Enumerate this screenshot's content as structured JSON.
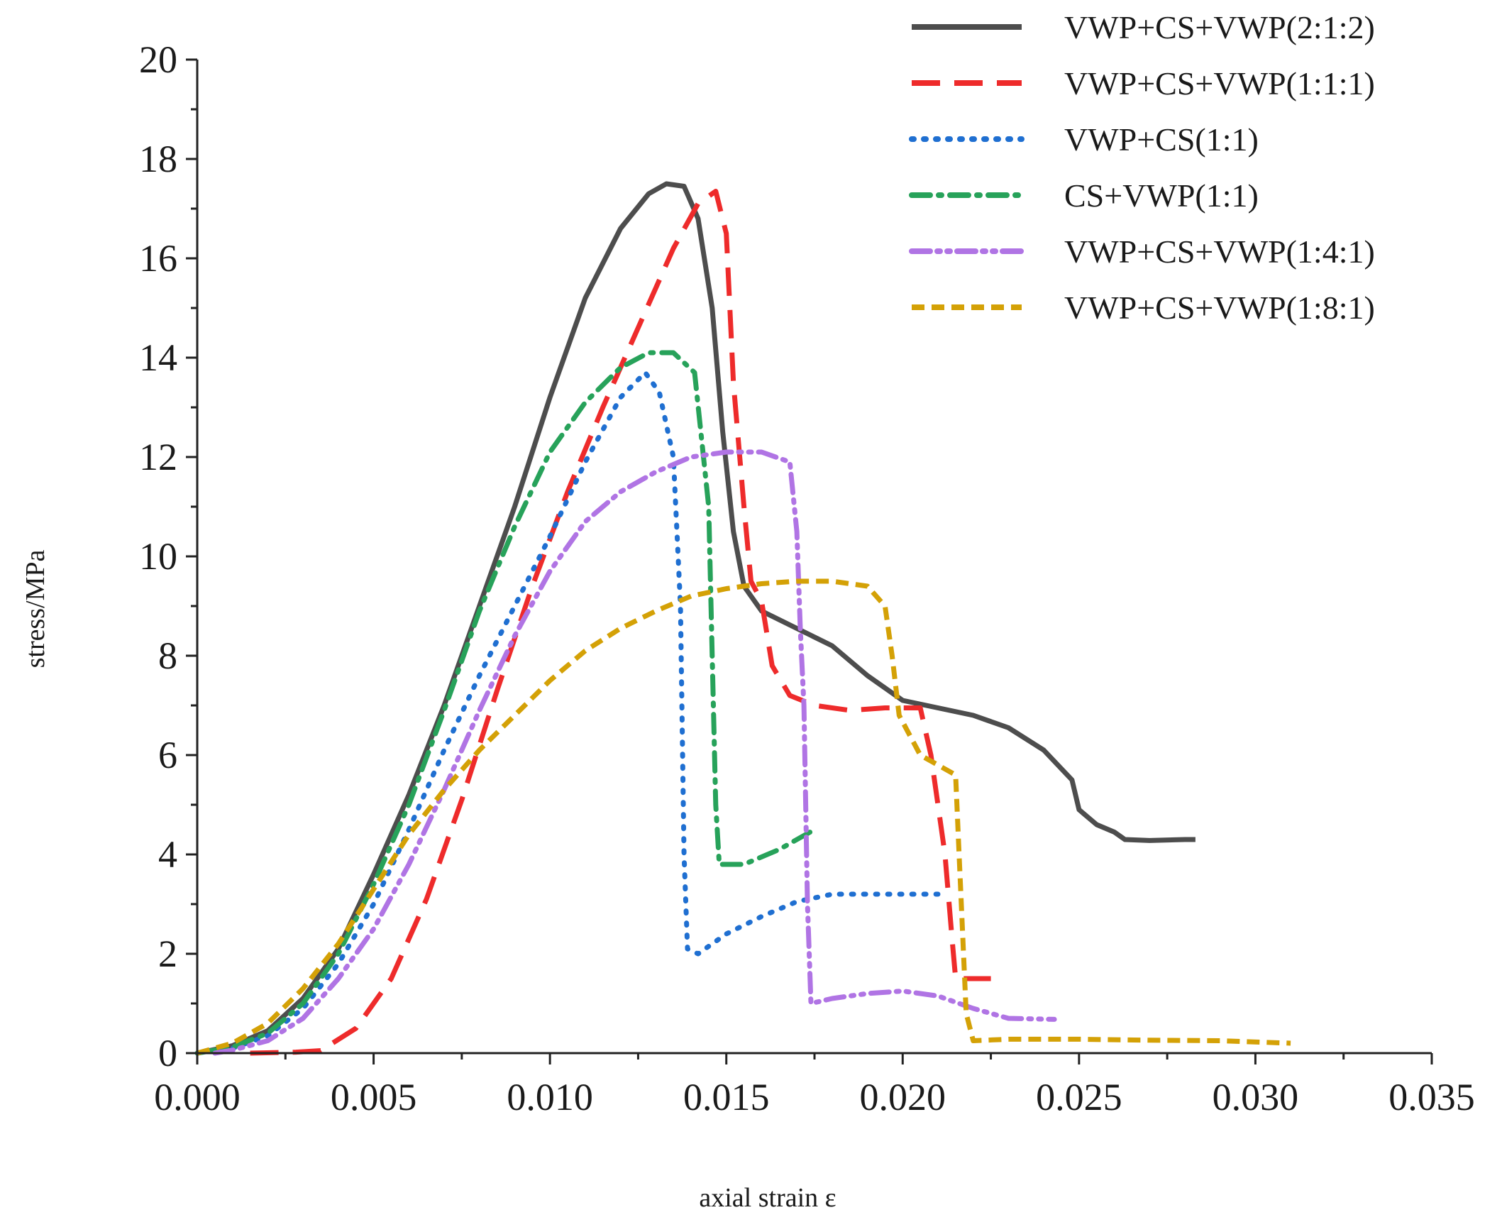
{
  "chart_data": {
    "type": "line",
    "title": "",
    "xlabel": "axial strain ε",
    "ylabel": "stress/MPa",
    "xlim": [
      0,
      0.035
    ],
    "ylim": [
      0,
      20
    ],
    "x_ticks": [
      0,
      0.005,
      0.01,
      0.015,
      0.02,
      0.025,
      0.03,
      0.035
    ],
    "x_tick_labels": [
      "0.000",
      "0.005",
      "0.010",
      "0.015",
      "0.020",
      "0.025",
      "0.030",
      "0.035"
    ],
    "y_ticks": [
      0,
      2,
      4,
      6,
      8,
      10,
      12,
      14,
      16,
      18,
      20
    ],
    "y_tick_labels": [
      "0",
      "2",
      "4",
      "6",
      "8",
      "10",
      "12",
      "14",
      "16",
      "18",
      "20"
    ],
    "grid": false,
    "legend_position": "top-right",
    "series": [
      {
        "name": "VWP+CS+VWP(2:1:2)",
        "color": "#4d4d4d",
        "style": "solid",
        "points": [
          [
            0,
            0
          ],
          [
            0.001,
            0.15
          ],
          [
            0.002,
            0.45
          ],
          [
            0.003,
            1.1
          ],
          [
            0.004,
            2.1
          ],
          [
            0.005,
            3.6
          ],
          [
            0.006,
            5.2
          ],
          [
            0.007,
            7.0
          ],
          [
            0.008,
            9.0
          ],
          [
            0.009,
            11.0
          ],
          [
            0.01,
            13.2
          ],
          [
            0.011,
            15.2
          ],
          [
            0.012,
            16.6
          ],
          [
            0.0128,
            17.3
          ],
          [
            0.0133,
            17.5
          ],
          [
            0.0138,
            17.45
          ],
          [
            0.0142,
            16.8
          ],
          [
            0.0146,
            15.0
          ],
          [
            0.0149,
            12.5
          ],
          [
            0.0152,
            10.5
          ],
          [
            0.0155,
            9.4
          ],
          [
            0.016,
            8.9
          ],
          [
            0.017,
            8.55
          ],
          [
            0.018,
            8.2
          ],
          [
            0.019,
            7.6
          ],
          [
            0.02,
            7.1
          ],
          [
            0.021,
            6.95
          ],
          [
            0.022,
            6.8
          ],
          [
            0.023,
            6.55
          ],
          [
            0.024,
            6.1
          ],
          [
            0.0248,
            5.5
          ],
          [
            0.025,
            4.9
          ],
          [
            0.0255,
            4.6
          ],
          [
            0.026,
            4.45
          ],
          [
            0.0263,
            4.3
          ],
          [
            0.027,
            4.28
          ],
          [
            0.028,
            4.3
          ],
          [
            0.0283,
            4.3
          ]
        ]
      },
      {
        "name": "VWP+CS+VWP(1:1:1)",
        "color": "#ee2b2b",
        "style": "dashed",
        "points": [
          [
            0.0015,
            0
          ],
          [
            0.0028,
            0.02
          ],
          [
            0.0035,
            0.05
          ],
          [
            0.0045,
            0.5
          ],
          [
            0.0055,
            1.5
          ],
          [
            0.0065,
            3.1
          ],
          [
            0.0075,
            5.1
          ],
          [
            0.0085,
            7.3
          ],
          [
            0.0095,
            9.4
          ],
          [
            0.0105,
            11.3
          ],
          [
            0.0115,
            13.0
          ],
          [
            0.0125,
            14.6
          ],
          [
            0.0135,
            16.2
          ],
          [
            0.0142,
            17.1
          ],
          [
            0.0147,
            17.35
          ],
          [
            0.015,
            16.5
          ],
          [
            0.0152,
            13.5
          ],
          [
            0.0155,
            11.0
          ],
          [
            0.0157,
            9.5
          ],
          [
            0.016,
            9.1
          ],
          [
            0.0163,
            7.8
          ],
          [
            0.0168,
            7.2
          ],
          [
            0.0175,
            7.0
          ],
          [
            0.0185,
            6.9
          ],
          [
            0.0195,
            6.95
          ],
          [
            0.0205,
            6.95
          ],
          [
            0.0208,
            6.0
          ],
          [
            0.0212,
            4.0
          ],
          [
            0.0214,
            2.3
          ],
          [
            0.0215,
            1.5
          ],
          [
            0.0225,
            1.5
          ]
        ]
      },
      {
        "name": "VWP+CS(1:1)",
        "color": "#1f6fd1",
        "style": "dotted",
        "points": [
          [
            0,
            0
          ],
          [
            0.001,
            0.1
          ],
          [
            0.002,
            0.35
          ],
          [
            0.003,
            0.9
          ],
          [
            0.004,
            1.8
          ],
          [
            0.005,
            3.0
          ],
          [
            0.006,
            4.5
          ],
          [
            0.007,
            6.1
          ],
          [
            0.008,
            7.6
          ],
          [
            0.009,
            9.0
          ],
          [
            0.01,
            10.4
          ],
          [
            0.011,
            11.9
          ],
          [
            0.012,
            13.2
          ],
          [
            0.0127,
            13.7
          ],
          [
            0.0131,
            13.3
          ],
          [
            0.0135,
            12.0
          ],
          [
            0.0137,
            9.0
          ],
          [
            0.0138,
            4.0
          ],
          [
            0.0139,
            2.1
          ],
          [
            0.0142,
            2.0
          ],
          [
            0.015,
            2.4
          ],
          [
            0.016,
            2.75
          ],
          [
            0.017,
            3.05
          ],
          [
            0.018,
            3.2
          ],
          [
            0.019,
            3.2
          ],
          [
            0.02,
            3.2
          ],
          [
            0.021,
            3.2
          ]
        ]
      },
      {
        "name": "CS+VWP(1:1)",
        "color": "#27a25a",
        "style": "dashdot",
        "points": [
          [
            0,
            0
          ],
          [
            0.001,
            0.12
          ],
          [
            0.002,
            0.4
          ],
          [
            0.003,
            1.0
          ],
          [
            0.004,
            2.0
          ],
          [
            0.005,
            3.4
          ],
          [
            0.006,
            5.0
          ],
          [
            0.007,
            6.9
          ],
          [
            0.008,
            8.9
          ],
          [
            0.009,
            10.6
          ],
          [
            0.01,
            12.1
          ],
          [
            0.011,
            13.1
          ],
          [
            0.012,
            13.8
          ],
          [
            0.0128,
            14.1
          ],
          [
            0.0135,
            14.1
          ],
          [
            0.0141,
            13.7
          ],
          [
            0.0145,
            11.0
          ],
          [
            0.0146,
            8.0
          ],
          [
            0.0147,
            5.0
          ],
          [
            0.0148,
            3.8
          ],
          [
            0.0155,
            3.8
          ],
          [
            0.0165,
            4.1
          ],
          [
            0.0175,
            4.5
          ]
        ]
      },
      {
        "name": "VWP+CS+VWP(1:4:1)",
        "color": "#b074e4",
        "style": "dashdotdot",
        "points": [
          [
            0.0005,
            0
          ],
          [
            0.001,
            0.06
          ],
          [
            0.002,
            0.25
          ],
          [
            0.003,
            0.7
          ],
          [
            0.004,
            1.5
          ],
          [
            0.005,
            2.5
          ],
          [
            0.006,
            3.8
          ],
          [
            0.007,
            5.3
          ],
          [
            0.008,
            6.9
          ],
          [
            0.009,
            8.4
          ],
          [
            0.01,
            9.7
          ],
          [
            0.011,
            10.7
          ],
          [
            0.012,
            11.3
          ],
          [
            0.013,
            11.7
          ],
          [
            0.014,
            12.0
          ],
          [
            0.015,
            12.1
          ],
          [
            0.016,
            12.1
          ],
          [
            0.0168,
            11.9
          ],
          [
            0.017,
            10.5
          ],
          [
            0.0171,
            8.5
          ],
          [
            0.0172,
            7.0
          ],
          [
            0.0173,
            3.0
          ],
          [
            0.0174,
            1.0
          ],
          [
            0.018,
            1.1
          ],
          [
            0.019,
            1.2
          ],
          [
            0.02,
            1.25
          ],
          [
            0.021,
            1.15
          ],
          [
            0.022,
            0.9
          ],
          [
            0.023,
            0.7
          ],
          [
            0.0243,
            0.68
          ]
        ]
      },
      {
        "name": "VWP+CS+VWP(1:8:1)",
        "color": "#d4a106",
        "style": "shortdash",
        "points": [
          [
            0,
            0
          ],
          [
            0.001,
            0.2
          ],
          [
            0.002,
            0.6
          ],
          [
            0.003,
            1.3
          ],
          [
            0.004,
            2.2
          ],
          [
            0.005,
            3.3
          ],
          [
            0.006,
            4.4
          ],
          [
            0.007,
            5.3
          ],
          [
            0.008,
            6.1
          ],
          [
            0.009,
            6.8
          ],
          [
            0.01,
            7.5
          ],
          [
            0.011,
            8.1
          ],
          [
            0.012,
            8.55
          ],
          [
            0.013,
            8.9
          ],
          [
            0.014,
            9.2
          ],
          [
            0.015,
            9.35
          ],
          [
            0.016,
            9.45
          ],
          [
            0.017,
            9.5
          ],
          [
            0.018,
            9.5
          ],
          [
            0.019,
            9.4
          ],
          [
            0.0195,
            9.0
          ],
          [
            0.0197,
            8.0
          ],
          [
            0.0199,
            6.8
          ],
          [
            0.0205,
            6.0
          ],
          [
            0.021,
            5.8
          ],
          [
            0.0215,
            5.6
          ],
          [
            0.0216,
            4.0
          ],
          [
            0.0218,
            0.8
          ],
          [
            0.022,
            0.25
          ],
          [
            0.023,
            0.28
          ],
          [
            0.025,
            0.28
          ],
          [
            0.027,
            0.26
          ],
          [
            0.029,
            0.25
          ],
          [
            0.031,
            0.2
          ]
        ]
      }
    ]
  }
}
